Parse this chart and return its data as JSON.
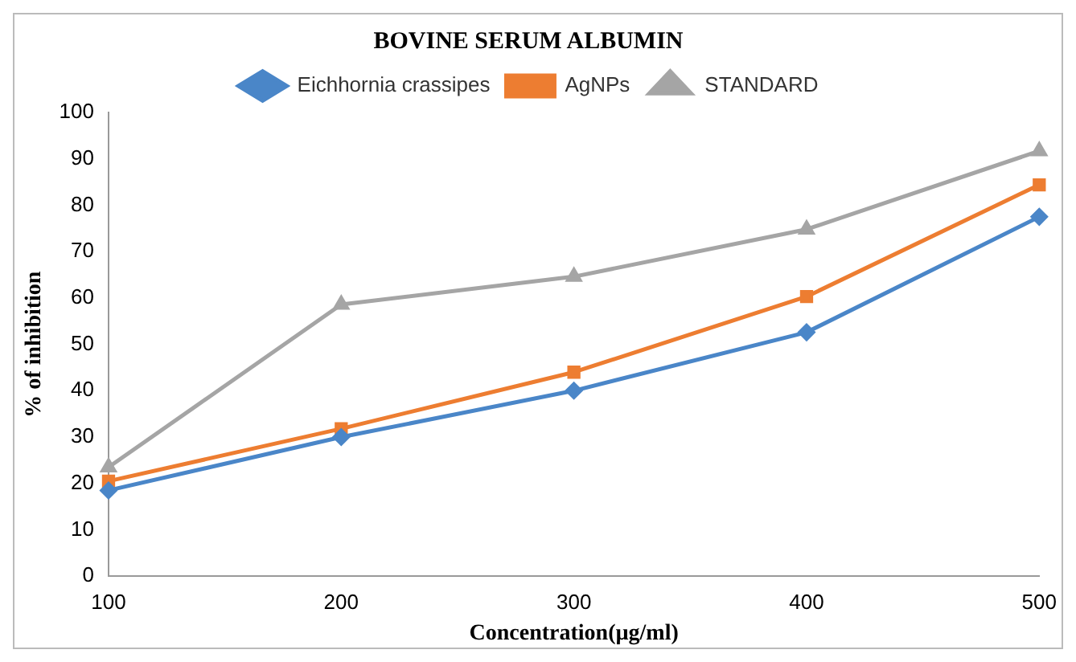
{
  "chart_data": {
    "type": "line",
    "title": "BOVINE SERUM ALBUMIN",
    "xlabel": "Concentration(µg/ml)",
    "ylabel": "% of inhibition",
    "categories": [
      "100",
      "200",
      "300",
      "400",
      "500"
    ],
    "ylim": [
      0,
      100
    ],
    "yticks": [
      0,
      10,
      20,
      30,
      40,
      50,
      60,
      70,
      80,
      90,
      100
    ],
    "grid": false,
    "legend": "top",
    "line_style": "solid",
    "series": [
      {
        "name": "Eichhornia crassipes",
        "color": "#4a86c8",
        "marker": "diamond",
        "values": [
          18.5,
          30,
          40,
          52.6,
          77.5
        ]
      },
      {
        "name": "AgNPs",
        "color": "#ed7d31",
        "marker": "square",
        "values": [
          20.5,
          31.8,
          44,
          60.3,
          84.4
        ]
      },
      {
        "name": "STANDARD",
        "color": "#a5a5a5",
        "marker": "triangle",
        "values": [
          23.5,
          58.6,
          64.6,
          74.8,
          91.7
        ]
      }
    ]
  }
}
